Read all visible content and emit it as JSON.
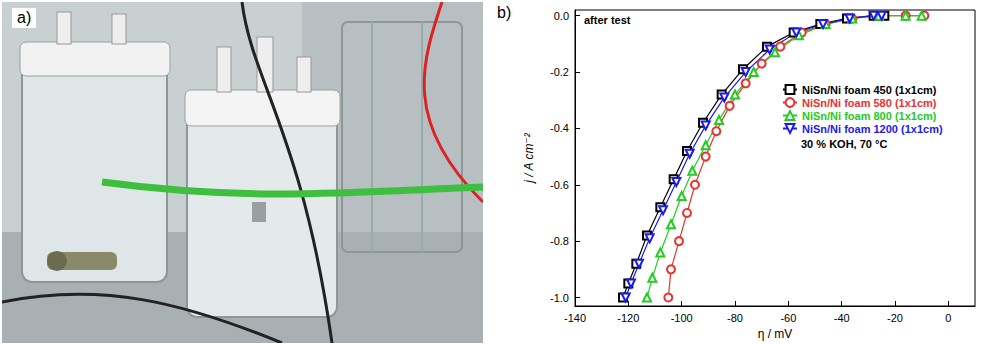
{
  "figure": {
    "panel_labels": [
      "a)",
      "b)"
    ]
  },
  "chart_data": {
    "type": "line",
    "annotations": [
      "after test",
      "30 % KOH, 70 °C"
    ],
    "x_label": "η / mV",
    "y_label": "j / A cm⁻²",
    "xlim": [
      -140,
      10
    ],
    "xticks": [
      -140,
      -120,
      -100,
      -80,
      -60,
      -40,
      -20,
      0
    ],
    "ylim": [
      -1.03,
      0.02
    ],
    "yticks": [
      {
        "value": 0,
        "label": "0.0"
      },
      -0.2,
      -0.4,
      -0.6,
      -0.8,
      {
        "value": -1,
        "label": "-1.0"
      }
    ],
    "grid": false,
    "legend": "right",
    "series": [
      {
        "name": "NiSn/Ni foam 450 (1x1cm)",
        "color": "#000000",
        "marker": "square",
        "x": [
          -122,
          -120,
          -117,
          -113,
          -108,
          -103,
          -98,
          -92,
          -85,
          -77,
          -68,
          -58,
          -48,
          -38,
          -28,
          -24
        ],
        "values": [
          -1.0,
          -0.95,
          -0.88,
          -0.78,
          -0.68,
          -0.58,
          -0.48,
          -0.38,
          -0.28,
          -0.19,
          -0.11,
          -0.06,
          -0.03,
          -0.01,
          0.0,
          0.0
        ]
      },
      {
        "name": "NiSn/Ni foam 580 (1x1cm)",
        "color": "#e8322e",
        "marker": "circle",
        "x": [
          -105,
          -104,
          -101,
          -98,
          -95,
          -91,
          -87,
          -82,
          -76,
          -70,
          -63,
          -55,
          -46,
          -36,
          -26,
          -16,
          -9
        ],
        "values": [
          -1.0,
          -0.9,
          -0.8,
          -0.7,
          -0.6,
          -0.5,
          -0.41,
          -0.32,
          -0.24,
          -0.17,
          -0.11,
          -0.06,
          -0.03,
          -0.01,
          0.0,
          0.0,
          0.0
        ]
      },
      {
        "name": "NiSn/Ni foam 800 (1x1cm)",
        "color": "#22cc22",
        "marker": "triangle-up",
        "x": [
          -113,
          -111,
          -108,
          -104,
          -100,
          -96,
          -91,
          -86,
          -80,
          -73,
          -65,
          -56,
          -46,
          -36,
          -26,
          -16,
          -10
        ],
        "values": [
          -1.0,
          -0.93,
          -0.84,
          -0.74,
          -0.64,
          -0.55,
          -0.46,
          -0.37,
          -0.28,
          -0.2,
          -0.13,
          -0.07,
          -0.03,
          -0.01,
          0.0,
          0.0,
          0.0
        ]
      },
      {
        "name": "NiSn/Ni foam 1200 (1x1cm)",
        "color": "#1a1aee",
        "marker": "triangle-down",
        "x": [
          -121,
          -119,
          -116,
          -112,
          -107,
          -102,
          -97,
          -91,
          -84,
          -76,
          -67,
          -57,
          -47,
          -37,
          -28,
          -25
        ],
        "values": [
          -1.0,
          -0.95,
          -0.88,
          -0.79,
          -0.69,
          -0.59,
          -0.49,
          -0.39,
          -0.29,
          -0.2,
          -0.12,
          -0.06,
          -0.03,
          -0.01,
          0.0,
          0.0
        ]
      }
    ]
  }
}
